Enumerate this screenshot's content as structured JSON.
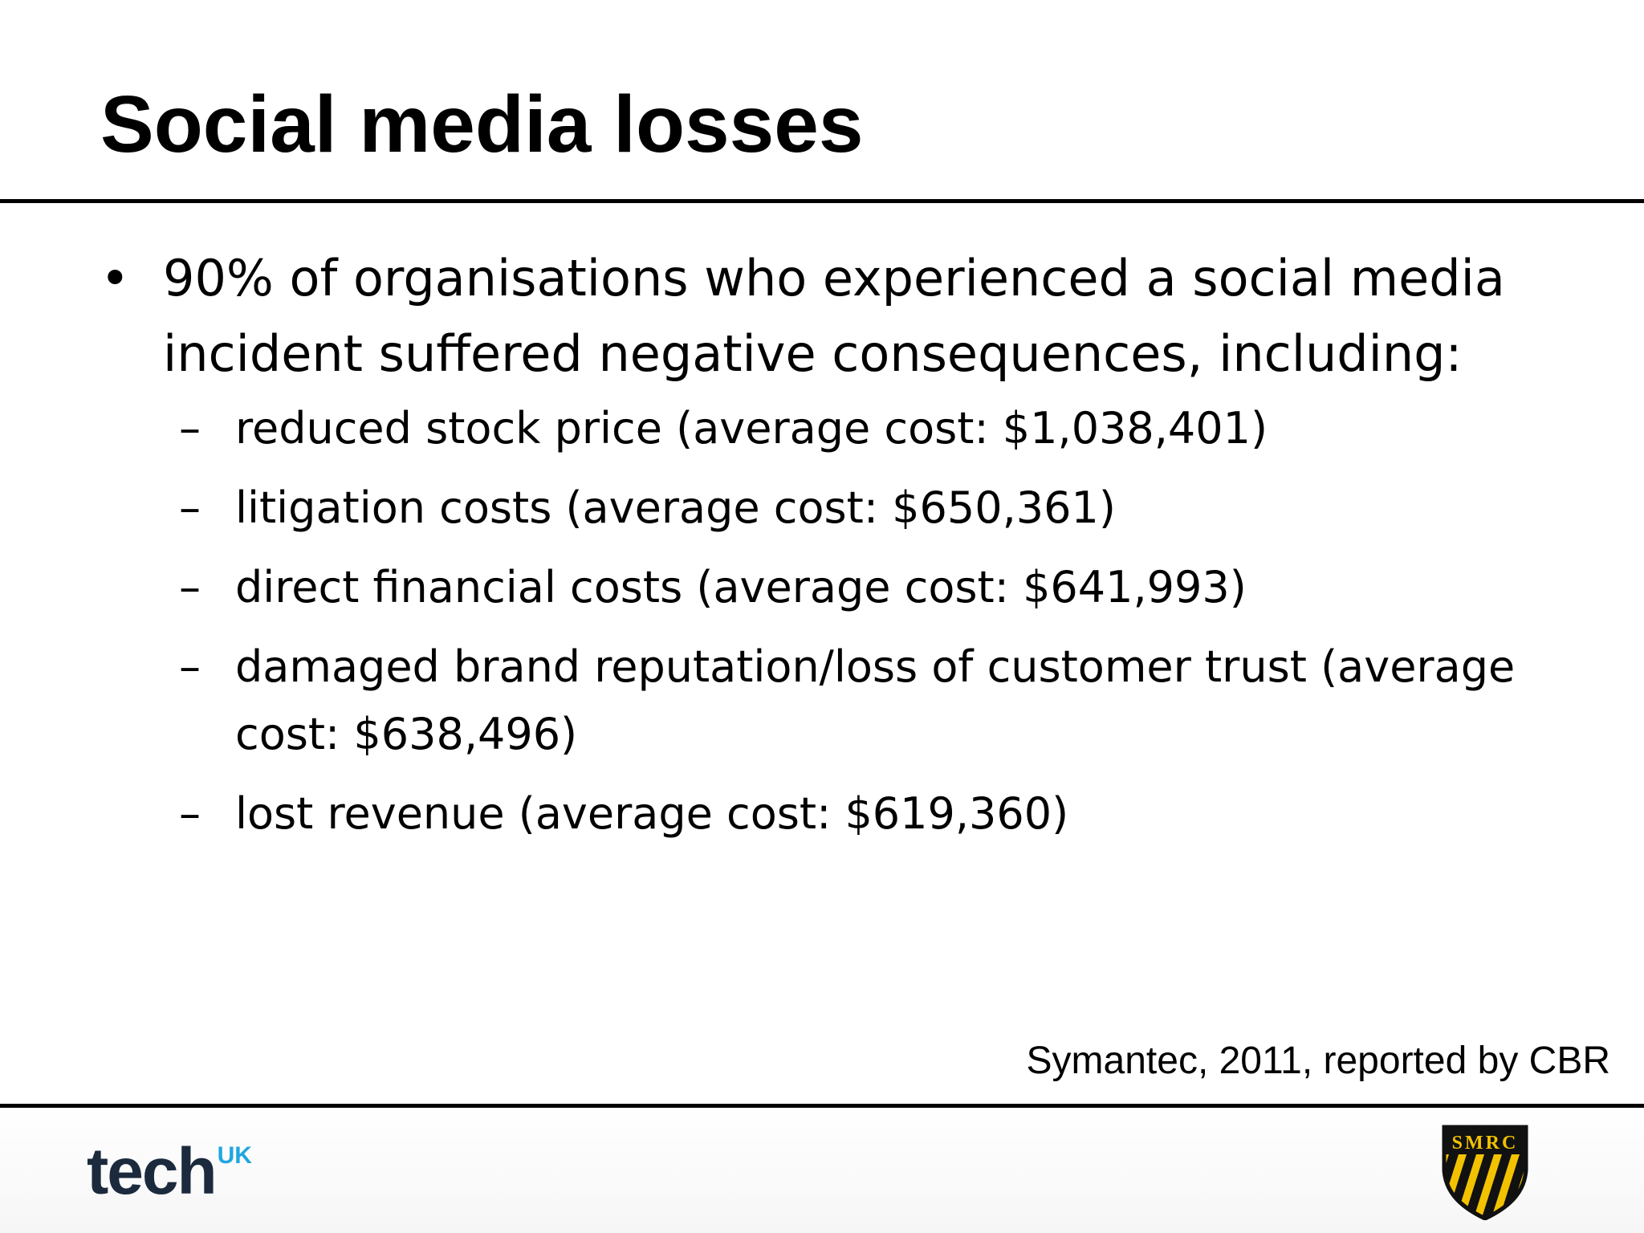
{
  "slide": {
    "title": "Social media losses",
    "bullet": {
      "marker": "•",
      "text": "90% of organisations who experienced a social media incident suffered negative consequences, including:"
    },
    "sub_marker": "–",
    "sub_items": [
      "reduced stock price (average cost: $1,038,401)",
      "litigation costs (average cost: $650,361)",
      "direct financial costs (average cost: $641,993)",
      "damaged brand reputation/loss of customer trust (average cost: $638,496)",
      "lost revenue (average cost: $619,360)"
    ],
    "source": "Symantec, 2011, reported by CBR"
  },
  "footer": {
    "left_logo": {
      "word": "tech",
      "superscript": "UK",
      "icon": "techuk-logo",
      "colors": {
        "word": "#1b2a3d",
        "superscript": "#1ea7e0"
      }
    },
    "right_logo": {
      "letters": "SMRC",
      "icon": "smrc-shield-logo",
      "colors": {
        "stripe_dark": "#111111",
        "stripe_light": "#f2c200"
      }
    }
  }
}
